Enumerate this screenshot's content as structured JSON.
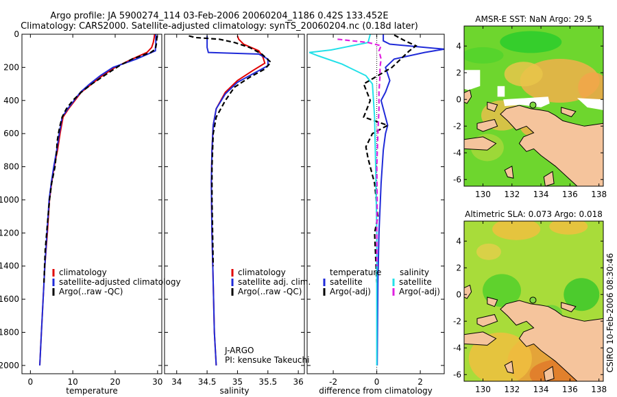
{
  "title_line1": "Argo profile: JA 5900274_114 03-Feb-2006 20060204_1186 0.42S 133.452E",
  "title_line2": "Climatology: CARS2000. Satellite-adjusted climatology: synTS_20060204.nc (0.18d later)",
  "colors": {
    "climatology": "#e00000",
    "satellite": "#1f2ad8",
    "argo": "#000000",
    "diff_sal_sat": "#22e0e8",
    "diff_sal_argo": "#e020e0",
    "land": "#f5c49c"
  },
  "chart_data": [
    {
      "type": "line",
      "name": "temperature",
      "xlabel": "temperature",
      "ylabel": "",
      "xlim": [
        -2,
        31
      ],
      "ylim": [
        2050,
        0
      ],
      "xticks": [
        0,
        10,
        20,
        30
      ],
      "yticks": [
        0,
        200,
        400,
        600,
        800,
        1000,
        1200,
        1400,
        1600,
        1800,
        2000
      ],
      "legend": [
        "climatology",
        "satellite-adjusted climatology",
        "Argo(..raw -QC)"
      ],
      "series": [
        {
          "name": "climatology",
          "style": "solid",
          "color": "#e00000",
          "points": [
            [
              29.3,
              0
            ],
            [
              29.2,
              20
            ],
            [
              29.0,
              50
            ],
            [
              28.6,
              80
            ],
            [
              27.5,
              110
            ],
            [
              24,
              150
            ],
            [
              20,
              200
            ],
            [
              17,
              250
            ],
            [
              14.5,
              300
            ],
            [
              12,
              350
            ],
            [
              10.5,
              400
            ],
            [
              9,
              450
            ],
            [
              7.7,
              500
            ],
            [
              7,
              600
            ],
            [
              6.4,
              700
            ],
            [
              5.6,
              800
            ],
            [
              5,
              900
            ],
            [
              4.5,
              1000
            ],
            [
              4,
              1200
            ],
            [
              3.4,
              1400
            ],
            [
              3,
              1600
            ],
            [
              2.6,
              1800
            ],
            [
              2.2,
              2000
            ]
          ]
        },
        {
          "name": "satellite-adjusted climatology",
          "style": "solid",
          "color": "#1f2ad8",
          "points": [
            [
              29.6,
              0
            ],
            [
              29.6,
              30
            ],
            [
              29.6,
              60
            ],
            [
              29.5,
              80
            ],
            [
              29.5,
              100
            ],
            [
              25,
              150
            ],
            [
              19.5,
              200
            ],
            [
              16.5,
              250
            ],
            [
              14,
              300
            ],
            [
              11.8,
              350
            ],
            [
              10.3,
              400
            ],
            [
              8.8,
              450
            ],
            [
              7.5,
              500
            ],
            [
              6.8,
              600
            ],
            [
              6.2,
              700
            ],
            [
              5.5,
              800
            ],
            [
              4.9,
              900
            ],
            [
              4.4,
              1000
            ],
            [
              3.9,
              1200
            ],
            [
              3.4,
              1400
            ],
            [
              3,
              1600
            ],
            [
              2.6,
              1800
            ],
            [
              2.2,
              2000
            ]
          ]
        },
        {
          "name": "Argo(..raw -QC)",
          "style": "dashed",
          "color": "#000000",
          "points": [
            [
              29.9,
              10
            ],
            [
              29.8,
              30
            ],
            [
              29.7,
              60
            ],
            [
              29.5,
              90
            ],
            [
              28.4,
              110
            ],
            [
              24,
              150
            ],
            [
              21,
              190
            ],
            [
              18,
              240
            ],
            [
              14.5,
              300
            ],
            [
              12,
              350
            ],
            [
              10,
              400
            ],
            [
              8.5,
              450
            ],
            [
              7.5,
              500
            ],
            [
              7,
              550
            ],
            [
              6.6,
              600
            ],
            [
              6.3,
              650
            ],
            [
              6.2,
              700
            ],
            [
              5.8,
              800
            ],
            [
              5,
              900
            ],
            [
              4.5,
              1000
            ],
            [
              4,
              1150
            ],
            [
              3.5,
              1300
            ],
            [
              3.2,
              1500
            ]
          ]
        }
      ]
    },
    {
      "type": "line",
      "name": "salinity",
      "xlabel": "salinity",
      "xlim": [
        33.8,
        36.1
      ],
      "ylim": [
        2050,
        0
      ],
      "xticks": [
        34,
        34.5,
        35,
        35.5,
        36
      ],
      "legend": [
        "climatology",
        "satellite adj. clim.",
        "Argo(..raw -QC)"
      ],
      "annotation": [
        "J-ARGO",
        "PI: kensuke Takeuchi"
      ],
      "series": [
        {
          "name": "climatology",
          "style": "solid",
          "color": "#e00000",
          "points": [
            [
              35.0,
              10
            ],
            [
              35.02,
              30
            ],
            [
              35.1,
              60
            ],
            [
              35.35,
              100
            ],
            [
              35.42,
              140
            ],
            [
              35.45,
              175
            ],
            [
              35.25,
              220
            ],
            [
              35.0,
              280
            ],
            [
              34.8,
              350
            ],
            [
              34.65,
              450
            ],
            [
              34.6,
              550
            ],
            [
              34.58,
              700
            ],
            [
              34.57,
              900
            ],
            [
              34.58,
              1200
            ],
            [
              34.6,
              1500
            ],
            [
              34.62,
              1800
            ],
            [
              34.65,
              2000
            ]
          ]
        },
        {
          "name": "satellite adj. clim.",
          "style": "solid",
          "color": "#1f2ad8",
          "points": [
            [
              34.5,
              10
            ],
            [
              34.5,
              40
            ],
            [
              34.5,
              80
            ],
            [
              34.52,
              110
            ],
            [
              35.35,
              120
            ],
            [
              35.5,
              150
            ],
            [
              35.5,
              190
            ],
            [
              35.3,
              230
            ],
            [
              35.0,
              290
            ],
            [
              34.8,
              360
            ],
            [
              34.65,
              450
            ],
            [
              34.6,
              550
            ],
            [
              34.58,
              700
            ],
            [
              34.57,
              900
            ],
            [
              34.58,
              1200
            ],
            [
              34.6,
              1500
            ],
            [
              34.62,
              1800
            ],
            [
              34.65,
              2000
            ]
          ]
        },
        {
          "name": "Argo(..raw -QC)",
          "style": "dashed",
          "color": "#000000",
          "points": [
            [
              34.2,
              10
            ],
            [
              34.3,
              20
            ],
            [
              34.7,
              30
            ],
            [
              34.95,
              50
            ],
            [
              35.2,
              80
            ],
            [
              35.4,
              120
            ],
            [
              35.55,
              170
            ],
            [
              35.45,
              210
            ],
            [
              35.2,
              260
            ],
            [
              34.95,
              320
            ],
            [
              34.8,
              400
            ],
            [
              34.65,
              500
            ],
            [
              34.6,
              600
            ],
            [
              34.58,
              800
            ],
            [
              34.58,
              1000
            ],
            [
              34.59,
              1200
            ],
            [
              34.6,
              1400
            ]
          ]
        }
      ]
    },
    {
      "type": "line",
      "name": "difference from climatology",
      "xlabel": "difference from climatology",
      "xlim": [
        -3.2,
        3.1
      ],
      "ylim": [
        2050,
        0
      ],
      "xticks": [
        -2,
        0,
        2
      ],
      "legend_left_title": "temperature",
      "legend_right_title": "salinity",
      "legend": [
        "satellite",
        "Argo(-adj)",
        "satellite",
        "Argo(-adj)"
      ],
      "series": [
        {
          "name": "temperature satellite",
          "style": "solid",
          "color": "#1f2ad8",
          "points": [
            [
              0.3,
              0
            ],
            [
              0.3,
              40
            ],
            [
              0.6,
              60
            ],
            [
              3.1,
              90
            ],
            [
              2.2,
              110
            ],
            [
              0.8,
              150
            ],
            [
              0.4,
              200
            ],
            [
              0.6,
              280
            ],
            [
              0.4,
              350
            ],
            [
              0.2,
              400
            ],
            [
              0.3,
              450
            ],
            [
              0.5,
              550
            ],
            [
              0.4,
              600
            ],
            [
              0.3,
              700
            ],
            [
              0.2,
              900
            ],
            [
              0.1,
              1200
            ],
            [
              0.05,
              1500
            ],
            [
              0.02,
              2000
            ]
          ]
        },
        {
          "name": "temperature Argo(-adj)",
          "style": "dashed",
          "color": "#000000",
          "points": [
            [
              0.8,
              5
            ],
            [
              1.3,
              40
            ],
            [
              1.8,
              70
            ],
            [
              1.5,
              100
            ],
            [
              1.1,
              150
            ],
            [
              0.7,
              200
            ],
            [
              -0.6,
              300
            ],
            [
              -0.3,
              400
            ],
            [
              -0.6,
              500
            ],
            [
              0.5,
              550
            ],
            [
              -0.2,
              600
            ],
            [
              -0.5,
              680
            ],
            [
              -0.4,
              750
            ],
            [
              -0.1,
              900
            ],
            [
              0.05,
              1100
            ],
            [
              -0.1,
              1200
            ],
            [
              0,
              1500
            ]
          ]
        },
        {
          "name": "salinity satellite",
          "style": "solid",
          "color": "#22e0e8",
          "points": [
            [
              -0.3,
              0
            ],
            [
              -0.4,
              50
            ],
            [
              -2.1,
              95
            ],
            [
              -3.1,
              110
            ],
            [
              -2.7,
              130
            ],
            [
              -1.6,
              180
            ],
            [
              -0.5,
              250
            ],
            [
              -0.2,
              300
            ],
            [
              -0.15,
              400
            ],
            [
              -0.1,
              500
            ],
            [
              -0.05,
              800
            ],
            [
              0,
              1200
            ],
            [
              0,
              2000
            ]
          ]
        },
        {
          "name": "salinity Argo(-adj)",
          "style": "dashed",
          "color": "#e020e0",
          "points": [
            [
              -1.8,
              30
            ],
            [
              -0.4,
              50
            ],
            [
              0.2,
              70
            ],
            [
              0.1,
              100
            ],
            [
              0.2,
              150
            ],
            [
              0.15,
              200
            ],
            [
              0.15,
              250
            ],
            [
              0.1,
              350
            ],
            [
              0.1,
              450
            ],
            [
              0.05,
              600
            ],
            [
              0,
              800
            ],
            [
              0.02,
              1000
            ],
            [
              0,
              1200
            ],
            [
              0,
              1400
            ]
          ]
        }
      ]
    },
    {
      "type": "heatmap",
      "name": "AMSR-E SST map",
      "title": "AMSR-E SST: NaN Argo: 29.5",
      "xlim": [
        128.7,
        138.3
      ],
      "ylim": [
        -6.5,
        5.5
      ],
      "xticks": [
        130,
        132,
        134,
        136,
        138
      ],
      "yticks": [
        -6,
        -4,
        -2,
        0,
        2,
        4
      ],
      "marker": [
        133.45,
        -0.42
      ]
    },
    {
      "type": "heatmap",
      "name": "Altimetric SLA map",
      "title": "Altimetric SLA: 0.073 Argo: 0.018",
      "xlim": [
        128.7,
        138.3
      ],
      "ylim": [
        -6.5,
        5.5
      ],
      "xticks": [
        130,
        132,
        134,
        136,
        138
      ],
      "yticks": [
        -6,
        -4,
        -2,
        0,
        2,
        4
      ],
      "marker": [
        133.45,
        -0.42
      ]
    }
  ],
  "stamp": "CSIRO 10-Feb-2006 08:30:46"
}
